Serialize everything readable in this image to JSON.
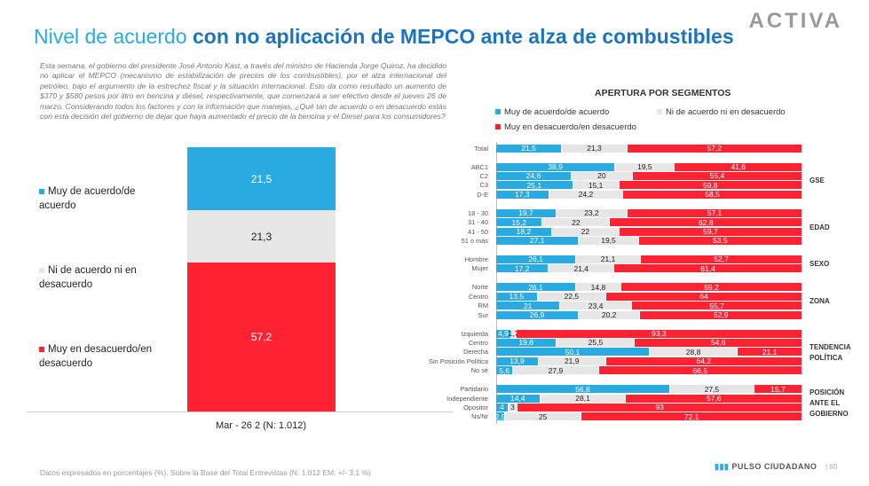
{
  "header": {
    "title_part1": "Nivel de acuerdo ",
    "title_part2": "con no aplicación de MEPCO ante alza de combustibles",
    "logo": "ACTIVA"
  },
  "question": "Esta semana, el gobierno del presidente José Antonio Kast, a través del ministro de Hacienda Jorge Quiroz, ha decidido no aplicar el MEPCO (mecanismo de estabilización de precios de los combustibles), por el alza internacional del petróleo, bajo el argumento de la estrechez fiscal y la situación internacional. Esto da como resultado un aumento de $370 y $580 pesos por litro en bencina y diésel, respectivamente, que comenzará a ser efectivo desde el jueves 26 de marzo. Considerando todos los factores y con la información que manejas, ¿Qué tan de acuerdo o en desacuerdo estás con esta decisión del gobierno de dejar que haya aumentado el precio de la bencina y el Diesel para los consumidores?",
  "colors": {
    "agree": "#29abe2",
    "neutral": "#e6e6e6",
    "disagree": "#ff2233"
  },
  "chart_data": [
    {
      "type": "bar",
      "stacked": true,
      "categories": [
        "Mar - 26 2 (N: 1.012)"
      ],
      "series": [
        {
          "name": "Muy de acuerdo/de acuerdo",
          "values": [
            21.5
          ],
          "label": "21,5"
        },
        {
          "name": "Ni de acuerdo ni en desacuerdo",
          "values": [
            21.3
          ],
          "label": "21,3"
        },
        {
          "name": "Muy en desacuerdo/en desacuerdo",
          "values": [
            57.2
          ],
          "label": "57,2"
        }
      ],
      "legend": [
        "Muy de acuerdo/de acuerdo",
        "Ni de acuerdo ni en desacuerdo",
        "Muy en desacuerdo/en desacuerdo"
      ]
    },
    {
      "type": "bar",
      "orientation": "horizontal",
      "stacked": true,
      "title": "APERTURA POR SEGMENTOS",
      "legend": [
        "Muy de acuerdo/de acuerdo",
        "Ni de acuerdo ni en desacuerdo",
        "Muy en desacuerdo/en desacuerdo"
      ],
      "groups": [
        {
          "name": "",
          "rows": [
            {
              "label": "Total",
              "values": [
                "21,5",
                "21,3",
                "57,2"
              ]
            }
          ]
        },
        {
          "name": "GSE",
          "rows": [
            {
              "label": "ABC1",
              "values": [
                "38,9",
                "19,5",
                "41,6"
              ]
            },
            {
              "label": "C2",
              "values": [
                "24,6",
                "20",
                "55,4"
              ]
            },
            {
              "label": "C3",
              "values": [
                "25,1",
                "15,1",
                "59,8"
              ]
            },
            {
              "label": "D-E",
              "values": [
                "17,3",
                "24,2",
                "58,5"
              ]
            }
          ]
        },
        {
          "name": "EDAD",
          "rows": [
            {
              "label": "18 - 30",
              "values": [
                "19,7",
                "23,2",
                "57,1"
              ]
            },
            {
              "label": "31 - 40",
              "values": [
                "15,2",
                "22",
                "62,8"
              ]
            },
            {
              "label": "41 - 50",
              "values": [
                "18,2",
                "22",
                "59,7"
              ]
            },
            {
              "label": "51 o más",
              "values": [
                "27,1",
                "19,5",
                "53,5"
              ]
            }
          ]
        },
        {
          "name": "SEXO",
          "rows": [
            {
              "label": "Hombre",
              "values": [
                "26,1",
                "21,1",
                "52,7"
              ]
            },
            {
              "label": "Mujer",
              "values": [
                "17,2",
                "21,4",
                "61,4"
              ]
            }
          ]
        },
        {
          "name": "ZONA",
          "rows": [
            {
              "label": "Norte",
              "values": [
                "26,1",
                "14,8",
                "59,2"
              ]
            },
            {
              "label": "Centro",
              "values": [
                "13,5",
                "22,5",
                "64"
              ]
            },
            {
              "label": "RM",
              "values": [
                "21",
                "23,4",
                "55,7"
              ]
            },
            {
              "label": "Sur",
              "values": [
                "26,9",
                "20,2",
                "52,9"
              ]
            }
          ]
        },
        {
          "name": "TENDENCIA POLÍTICA",
          "rows": [
            {
              "label": "Izquierda",
              "values": [
                "4,9",
                "1,7",
                "93,3"
              ]
            },
            {
              "label": "Centro",
              "values": [
                "19,8",
                "25,5",
                "54,6"
              ]
            },
            {
              "label": "Derecha",
              "values": [
                "50,1",
                "28,8",
                "21,1"
              ]
            },
            {
              "label": "Sin Posición Política",
              "values": [
                "13,9",
                "21,9",
                "64,2"
              ]
            },
            {
              "label": "No sé",
              "values": [
                "5,6",
                "27,9",
                "66,5"
              ]
            }
          ]
        },
        {
          "name": "POSICIÓN ANTE EL GOBIERNO",
          "rows": [
            {
              "label": "Partidario",
              "values": [
                "56,8",
                "27,5",
                "15,7"
              ]
            },
            {
              "label": "Independiente",
              "values": [
                "14,4",
                "28,1",
                "57,6"
              ]
            },
            {
              "label": "Opositor",
              "values": [
                "4",
                "3",
                "93"
              ]
            },
            {
              "label": "Ns/Nr",
              "values": [
                "2,9",
                "25",
                "72,1"
              ]
            }
          ]
        }
      ]
    }
  ],
  "footer": {
    "note": "Datos expresados en porcentajes (%). Sobre la Base del Total Entrevistas (N: 1.012  EM: +/- 3,1 %)",
    "brand": "PULSO CIUDADANO",
    "page": "|  60"
  }
}
